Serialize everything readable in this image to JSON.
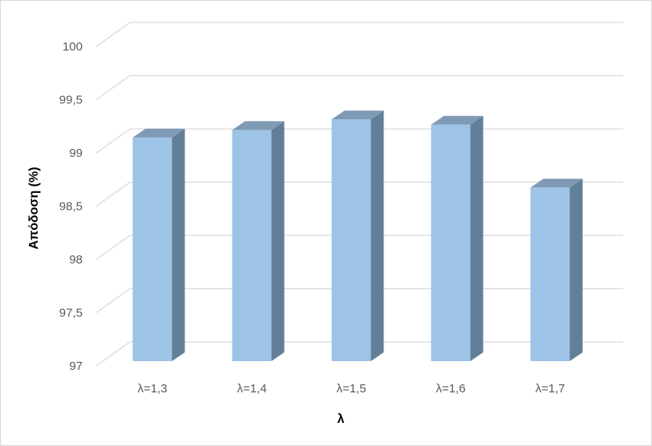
{
  "chart_data": {
    "type": "bar",
    "title": "",
    "xlabel": "λ",
    "ylabel": "Απόδοση (%)",
    "categories": [
      "λ=1,3",
      "λ=1,4",
      "λ=1,5",
      "λ=1,6",
      "λ=1,7"
    ],
    "values": [
      99.1,
      99.17,
      99.27,
      99.22,
      98.63
    ],
    "ylim": [
      97,
      100
    ],
    "yticks": [
      "97",
      "97,5",
      "98",
      "98,5",
      "99",
      "99,5",
      "100"
    ],
    "grid": true,
    "legend": "none",
    "bar_style": "3d-column",
    "colors": {
      "bar_front": "#9dc3e6",
      "bar_side": "#627f99",
      "bar_top": "#7f9ab5",
      "gridline": "#d9d9d9"
    }
  }
}
